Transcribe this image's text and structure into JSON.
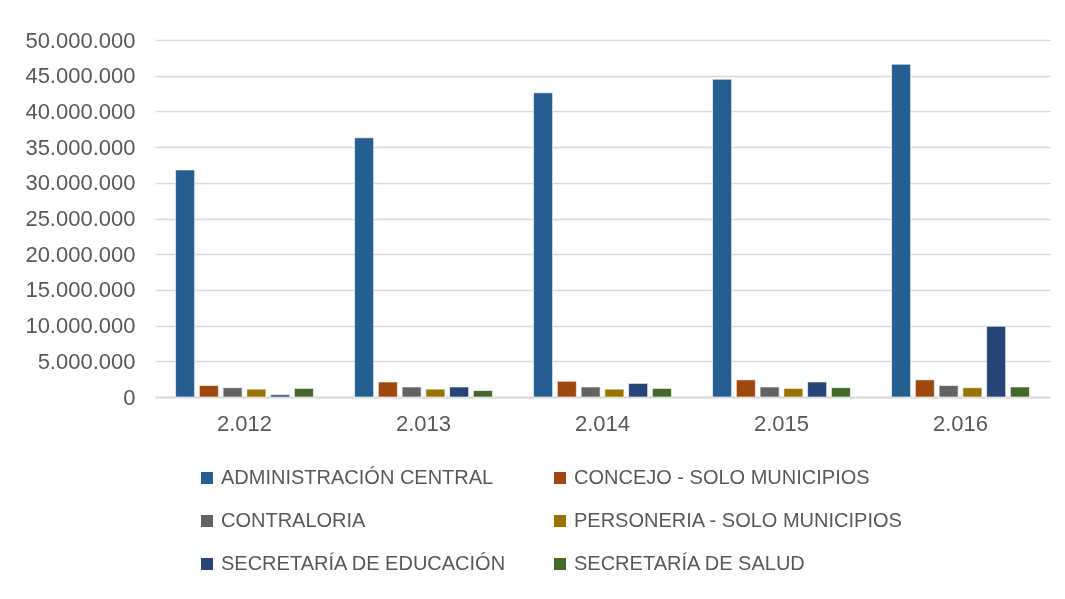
{
  "chart_data": {
    "type": "bar",
    "categories": [
      "2.012",
      "2.013",
      "2.014",
      "2.015",
      "2.016"
    ],
    "series": [
      {
        "name": "ADMINISTRACIÓN CENTRAL",
        "color": "#255e91",
        "values": [
          31800000,
          36300000,
          42600000,
          44500000,
          46600000
        ]
      },
      {
        "name": "CONCEJO - SOLO MUNICIPIOS",
        "color": "#9e480e",
        "values": [
          1600000,
          2100000,
          2200000,
          2400000,
          2400000
        ]
      },
      {
        "name": "CONTRALORIA",
        "color": "#636363",
        "values": [
          1300000,
          1400000,
          1400000,
          1400000,
          1600000
        ]
      },
      {
        "name": "PERSONERIA - SOLO MUNICIPIOS",
        "color": "#997300",
        "values": [
          1100000,
          1100000,
          1100000,
          1200000,
          1300000
        ]
      },
      {
        "name": "SECRETARÍA DE EDUCACIÓN",
        "color": "#264478",
        "values": [
          300000,
          1400000,
          1900000,
          2100000,
          9900000
        ]
      },
      {
        "name": "SECRETARÍA DE SALUD",
        "color": "#43682b",
        "values": [
          1200000,
          900000,
          1200000,
          1300000,
          1400000
        ]
      }
    ],
    "ylim": [
      0,
      50000000
    ],
    "yticks": [
      0,
      {
        "value": 5000000,
        "label": "5.000.000"
      },
      {
        "value": 10000000,
        "label": "10.000.000"
      },
      {
        "value": 15000000,
        "label": "15.000.000"
      },
      {
        "value": 20000000,
        "label": "20.000.000"
      },
      {
        "value": 25000000,
        "label": "25.000.000"
      },
      {
        "value": 30000000,
        "label": "30.000.000"
      },
      {
        "value": 35000000,
        "label": "35.000.000"
      },
      {
        "value": 40000000,
        "label": "40.000.000"
      },
      {
        "value": 45000000,
        "label": "45.000.000"
      },
      {
        "value": 50000000,
        "label": "50.000.000"
      }
    ],
    "grid": "y",
    "legend": "bottom"
  }
}
